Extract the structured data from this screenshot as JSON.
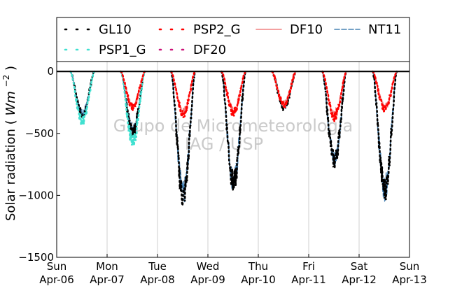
{
  "chart_data": {
    "type": "line",
    "ylabel": "Solar radiation",
    "ylabel_unit_base": "Wm",
    "ylabel_unit_exp": "−2",
    "ylim": [
      -1500,
      80
    ],
    "y_ticks": [
      0,
      -500,
      -1000,
      -1500
    ],
    "y_tick_labels": [
      "0",
      "−500",
      "−1000",
      "−1500"
    ],
    "xlim": [
      "2014-04-06",
      "2014-04-13"
    ],
    "x_ticks": [
      {
        "date": "2014-04-06",
        "day": "Sun",
        "label": "Apr-06"
      },
      {
        "date": "2014-04-07",
        "day": "Mon",
        "label": "Apr-07"
      },
      {
        "date": "2014-04-08",
        "day": "Tue",
        "label": "Apr-08"
      },
      {
        "date": "2014-04-09",
        "day": "Wed",
        "label": "Apr-09"
      },
      {
        "date": "2014-04-10",
        "day": "Thu",
        "label": "Apr-10"
      },
      {
        "date": "2014-04-11",
        "day": "Fri",
        "label": "Apr-11"
      },
      {
        "date": "2014-04-12",
        "day": "Sat",
        "label": "Apr-12"
      },
      {
        "date": "2014-04-13",
        "day": "Sun",
        "label": "Apr-13"
      }
    ],
    "grid": "vertical",
    "legend_placement": "top",
    "watermark_lines": [
      "Grupo de Micrometeorologia",
      "IAG / USP"
    ],
    "series": [
      {
        "name": "GL10",
        "color": "#000000",
        "style": "dotted",
        "daily": [
          {
            "date": "2014-04-06",
            "peak": -350
          },
          {
            "date": "2014-04-07",
            "peak": -480
          },
          {
            "date": "2014-04-08",
            "peak": -1010
          },
          {
            "date": "2014-04-09",
            "peak": -900
          },
          {
            "date": "2014-04-10",
            "peak": -290
          },
          {
            "date": "2014-04-11",
            "peak": -720
          },
          {
            "date": "2014-04-12",
            "peak": -950
          }
        ]
      },
      {
        "name": "PSP1_G",
        "color": "#40e0d0",
        "style": "dotted",
        "daily": [
          {
            "date": "2014-04-06",
            "peak": -400
          },
          {
            "date": "2014-04-07",
            "peak": -560
          }
        ]
      },
      {
        "name": "PSP2_G",
        "color": "#ff0000",
        "style": "dotted",
        "daily": [
          {
            "date": "2014-04-07",
            "peak": -290
          },
          {
            "date": "2014-04-08",
            "peak": -340
          },
          {
            "date": "2014-04-09",
            "peak": -330
          },
          {
            "date": "2014-04-10",
            "peak": -270
          },
          {
            "date": "2014-04-11",
            "peak": -370
          },
          {
            "date": "2014-04-12",
            "peak": -300
          }
        ]
      },
      {
        "name": "DF10",
        "color": "#f08080",
        "style": "solid",
        "daily": [
          {
            "date": "2014-04-07",
            "peak": -280
          },
          {
            "date": "2014-04-08",
            "peak": -330
          },
          {
            "date": "2014-04-09",
            "peak": -320
          },
          {
            "date": "2014-04-10",
            "peak": -260
          },
          {
            "date": "2014-04-11",
            "peak": -360
          },
          {
            "date": "2014-04-12",
            "peak": -290
          }
        ]
      },
      {
        "name": "DF20",
        "color": "#cc1177",
        "style": "dotted",
        "daily": []
      },
      {
        "name": "NT11",
        "color": "#4682b4",
        "style": "dashed",
        "daily": [
          {
            "date": "2014-04-06",
            "peak": -340
          },
          {
            "date": "2014-04-07",
            "peak": -470
          },
          {
            "date": "2014-04-08",
            "peak": -990
          },
          {
            "date": "2014-04-09",
            "peak": -890
          },
          {
            "date": "2014-04-10",
            "peak": -280
          },
          {
            "date": "2014-04-11",
            "peak": -710
          },
          {
            "date": "2014-04-12",
            "peak": -940
          }
        ]
      }
    ]
  }
}
